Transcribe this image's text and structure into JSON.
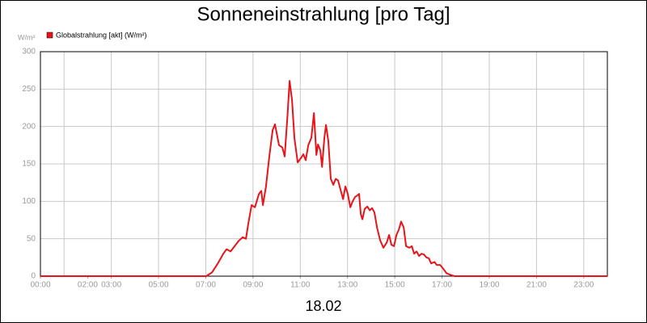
{
  "chart_data": {
    "type": "line",
    "title": "Sonneneinstrahlung [pro Tag]",
    "ylabel": "W/m²",
    "xlabel": "18.02",
    "x": [
      0,
      7.02,
      7.26,
      7.53,
      7.74,
      7.88,
      8.05,
      8.22,
      8.39,
      8.56,
      8.7,
      8.8,
      8.94,
      9.08,
      9.25,
      9.35,
      9.42,
      9.55,
      9.69,
      9.83,
      9.93,
      10.1,
      10.24,
      10.34,
      10.45,
      10.55,
      10.65,
      10.75,
      10.89,
      11.03,
      11.13,
      11.23,
      11.34,
      11.47,
      11.58,
      11.68,
      11.75,
      11.85,
      11.92,
      12.02,
      12.09,
      12.19,
      12.29,
      12.4,
      12.5,
      12.6,
      12.71,
      12.81,
      12.91,
      13.01,
      13.12,
      13.22,
      13.32,
      13.42,
      13.49,
      13.56,
      13.63,
      13.73,
      13.84,
      13.94,
      14.04,
      14.14,
      14.25,
      14.38,
      14.52,
      14.66,
      14.76,
      14.86,
      14.97,
      15.07,
      15.17,
      15.27,
      15.38,
      15.48,
      15.62,
      15.72,
      15.82,
      15.92,
      16.03,
      16.13,
      16.23,
      16.34,
      16.44,
      16.54,
      16.68,
      16.78,
      16.92,
      17.05,
      17.19,
      17.33,
      17.53,
      24
    ],
    "series": [
      {
        "name": "Globalstrahlung [akt] (W/m²)",
        "color": "#e8141a",
        "values": [
          0,
          0,
          5,
          18,
          30,
          36,
          33,
          40,
          47,
          52,
          50,
          70,
          95,
          92,
          110,
          114,
          95,
          120,
          160,
          195,
          203,
          175,
          172,
          160,
          210,
          261,
          235,
          185,
          152,
          158,
          163,
          155,
          175,
          185,
          218,
          162,
          176,
          168,
          146,
          185,
          202,
          180,
          130,
          122,
          130,
          128,
          115,
          103,
          120,
          110,
          92,
          100,
          106,
          108,
          110,
          83,
          76,
          90,
          93,
          88,
          91,
          85,
          65,
          48,
          38,
          45,
          55,
          42,
          40,
          55,
          62,
          73,
          65,
          40,
          38,
          40,
          30,
          33,
          27,
          30,
          29,
          25,
          24,
          17,
          19,
          15,
          15,
          10,
          4,
          2,
          0,
          0
        ]
      }
    ],
    "xlim": [
      0,
      24
    ],
    "xticks": [
      {
        "value": 0,
        "label": "00:00"
      },
      {
        "value": 2,
        "label": "02:00"
      },
      {
        "value": 3,
        "label": "03:00"
      },
      {
        "value": 5,
        "label": "05:00"
      },
      {
        "value": 7,
        "label": "07:00"
      },
      {
        "value": 9,
        "label": "09:00"
      },
      {
        "value": 11,
        "label": "11:00"
      },
      {
        "value": 13,
        "label": "13:00"
      },
      {
        "value": 15,
        "label": "15:00"
      },
      {
        "value": 17,
        "label": "17:00"
      },
      {
        "value": 19,
        "label": "19:00"
      },
      {
        "value": 21,
        "label": "21:00"
      },
      {
        "value": 23,
        "label": "23:00"
      }
    ],
    "xgrid": [
      1,
      3,
      5,
      7,
      9,
      11,
      13,
      15,
      17,
      19,
      21,
      23
    ],
    "ylim": [
      0,
      300
    ],
    "yticks": [
      0,
      50,
      100,
      150,
      200,
      250,
      300
    ],
    "grid": true
  }
}
